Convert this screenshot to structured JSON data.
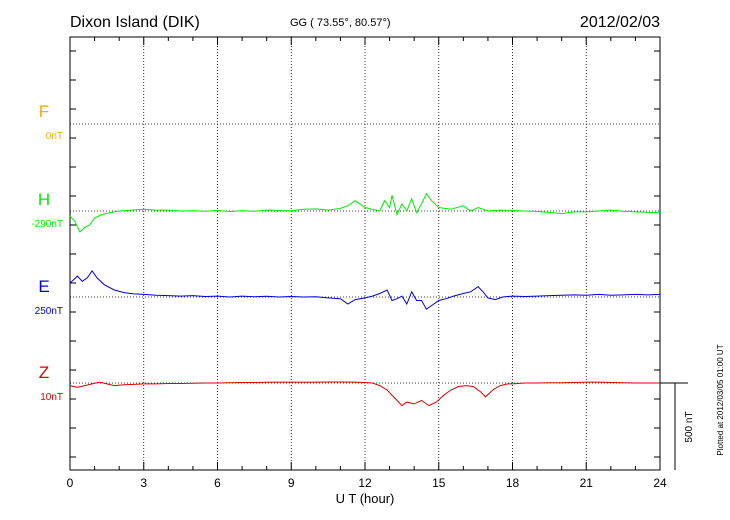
{
  "header": {
    "station": "Dixon Island (DIK)",
    "coords": "GG ( 73.55°,  80.57°)",
    "date": "2012/02/03"
  },
  "footer": {
    "plotted": "Plotted at 2012/03/05 01:00 UT"
  },
  "chart_data": {
    "type": "line",
    "xlabel": "U T (hour)",
    "xlim": [
      0,
      24
    ],
    "xticks": [
      "0",
      "3",
      "6",
      "9",
      "12",
      "15",
      "18",
      "21",
      "24"
    ],
    "scale_bar_label": "500 nT",
    "grid": true,
    "series": [
      {
        "name": "F",
        "baseline": "0nT",
        "color": "#ffa500",
        "points": []
      },
      {
        "name": "H",
        "baseline": "-290nT",
        "color": "#00ee00",
        "points": [
          [
            0,
            -30
          ],
          [
            0.2,
            -60
          ],
          [
            0.4,
            -120
          ],
          [
            0.6,
            -95
          ],
          [
            0.8,
            -80
          ],
          [
            1,
            -40
          ],
          [
            1.3,
            -20
          ],
          [
            1.6,
            -10
          ],
          [
            2,
            0
          ],
          [
            2.5,
            5
          ],
          [
            3,
            10
          ],
          [
            3.5,
            5
          ],
          [
            4,
            5
          ],
          [
            4.5,
            0
          ],
          [
            5,
            2
          ],
          [
            5.5,
            -2
          ],
          [
            6,
            3
          ],
          [
            6.5,
            -3
          ],
          [
            7,
            2
          ],
          [
            7.5,
            -2
          ],
          [
            8,
            5
          ],
          [
            8.5,
            3
          ],
          [
            9,
            2
          ],
          [
            9.5,
            10
          ],
          [
            10,
            12
          ],
          [
            10.5,
            5
          ],
          [
            11,
            15
          ],
          [
            11.3,
            30
          ],
          [
            11.6,
            60
          ],
          [
            12,
            20
          ],
          [
            12.3,
            10
          ],
          [
            12.6,
            0
          ],
          [
            12.8,
            60
          ],
          [
            13,
            20
          ],
          [
            13.1,
            90
          ],
          [
            13.3,
            -20
          ],
          [
            13.5,
            40
          ],
          [
            13.7,
            0
          ],
          [
            13.9,
            70
          ],
          [
            14.1,
            -10
          ],
          [
            14.3,
            40
          ],
          [
            14.5,
            100
          ],
          [
            14.7,
            60
          ],
          [
            15,
            20
          ],
          [
            15.5,
            10
          ],
          [
            16,
            30
          ],
          [
            16.3,
            0
          ],
          [
            16.6,
            20
          ],
          [
            17,
            0
          ],
          [
            17.5,
            5
          ],
          [
            18,
            3
          ],
          [
            18.5,
            0
          ],
          [
            19,
            -3
          ],
          [
            19.5,
            -8
          ],
          [
            20,
            -15
          ],
          [
            20.5,
            -5
          ],
          [
            21,
            -5
          ],
          [
            21.5,
            0
          ],
          [
            22,
            5
          ],
          [
            22.5,
            -2
          ],
          [
            23,
            -5
          ],
          [
            23.5,
            -8
          ],
          [
            24,
            -10
          ]
        ]
      },
      {
        "name": "E",
        "baseline": "250nT",
        "color": "#0000dd",
        "points": [
          [
            0,
            80
          ],
          [
            0.3,
            120
          ],
          [
            0.5,
            90
          ],
          [
            0.7,
            110
          ],
          [
            0.9,
            150
          ],
          [
            1.1,
            110
          ],
          [
            1.4,
            70
          ],
          [
            1.8,
            40
          ],
          [
            2.2,
            25
          ],
          [
            2.6,
            18
          ],
          [
            3,
            15
          ],
          [
            3.5,
            10
          ],
          [
            4,
            8
          ],
          [
            4.5,
            5
          ],
          [
            5,
            8
          ],
          [
            5.5,
            3
          ],
          [
            6,
            5
          ],
          [
            6.5,
            0
          ],
          [
            7,
            5
          ],
          [
            7.5,
            2
          ],
          [
            8,
            4
          ],
          [
            8.5,
            0
          ],
          [
            9,
            3
          ],
          [
            9.5,
            0
          ],
          [
            10,
            2
          ],
          [
            10.5,
            -5
          ],
          [
            11,
            -10
          ],
          [
            11.3,
            -40
          ],
          [
            11.6,
            -15
          ],
          [
            12,
            -5
          ],
          [
            12.3,
            5
          ],
          [
            12.6,
            20
          ],
          [
            12.9,
            40
          ],
          [
            13.1,
            -20
          ],
          [
            13.3,
            -10
          ],
          [
            13.5,
            5
          ],
          [
            13.7,
            -40
          ],
          [
            13.9,
            30
          ],
          [
            14.1,
            -20
          ],
          [
            14.3,
            -20
          ],
          [
            14.5,
            -70
          ],
          [
            14.8,
            -40
          ],
          [
            15,
            -20
          ],
          [
            15.3,
            -10
          ],
          [
            15.6,
            5
          ],
          [
            16,
            20
          ],
          [
            16.3,
            30
          ],
          [
            16.6,
            60
          ],
          [
            16.8,
            30
          ],
          [
            17,
            -5
          ],
          [
            17.3,
            -15
          ],
          [
            17.6,
            0
          ],
          [
            18,
            5
          ],
          [
            18.5,
            3
          ],
          [
            19,
            5
          ],
          [
            19.5,
            8
          ],
          [
            20,
            10
          ],
          [
            20.5,
            12
          ],
          [
            21,
            10
          ],
          [
            21.5,
            15
          ],
          [
            22,
            10
          ],
          [
            22.5,
            12
          ],
          [
            23,
            15
          ],
          [
            23.5,
            12
          ],
          [
            24,
            15
          ]
        ]
      },
      {
        "name": "Z",
        "baseline": "10nT",
        "color": "#dd0000",
        "points": [
          [
            0,
            -15
          ],
          [
            0.3,
            -25
          ],
          [
            0.6,
            -15
          ],
          [
            0.9,
            -5
          ],
          [
            1.2,
            5
          ],
          [
            1.5,
            -5
          ],
          [
            1.8,
            -15
          ],
          [
            2.2,
            -10
          ],
          [
            2.6,
            -8
          ],
          [
            3,
            -5
          ],
          [
            3.5,
            -5
          ],
          [
            4,
            -3
          ],
          [
            4.5,
            -3
          ],
          [
            5,
            -2
          ],
          [
            5.5,
            0
          ],
          [
            6,
            0
          ],
          [
            6.5,
            2
          ],
          [
            7,
            3
          ],
          [
            7.5,
            3
          ],
          [
            8,
            4
          ],
          [
            8.5,
            5
          ],
          [
            9,
            5
          ],
          [
            9.5,
            4
          ],
          [
            10,
            5
          ],
          [
            10.5,
            6
          ],
          [
            11,
            6
          ],
          [
            11.5,
            5
          ],
          [
            12,
            3
          ],
          [
            12.3,
            0
          ],
          [
            12.6,
            -15
          ],
          [
            12.9,
            -40
          ],
          [
            13.1,
            -70
          ],
          [
            13.3,
            -100
          ],
          [
            13.5,
            -130
          ],
          [
            13.7,
            -110
          ],
          [
            14,
            -120
          ],
          [
            14.3,
            -100
          ],
          [
            14.6,
            -130
          ],
          [
            14.9,
            -110
          ],
          [
            15.2,
            -70
          ],
          [
            15.5,
            -40
          ],
          [
            15.8,
            -20
          ],
          [
            16.1,
            -15
          ],
          [
            16.4,
            -20
          ],
          [
            16.7,
            -50
          ],
          [
            16.9,
            -80
          ],
          [
            17.2,
            -40
          ],
          [
            17.5,
            -15
          ],
          [
            17.8,
            -5
          ],
          [
            18,
            -5
          ],
          [
            18.5,
            0
          ],
          [
            19,
            0
          ],
          [
            19.5,
            2
          ],
          [
            20,
            2
          ],
          [
            20.5,
            3
          ],
          [
            21,
            5
          ],
          [
            21.5,
            5
          ],
          [
            22,
            3
          ],
          [
            22.5,
            2
          ],
          [
            23,
            0
          ],
          [
            23.5,
            0
          ],
          [
            24,
            0
          ]
        ]
      }
    ]
  },
  "colors": {
    "F": "#ffa500",
    "H": "#00ee00",
    "E": "#0000dd",
    "Z": "#dd0000",
    "text": "#000000"
  }
}
